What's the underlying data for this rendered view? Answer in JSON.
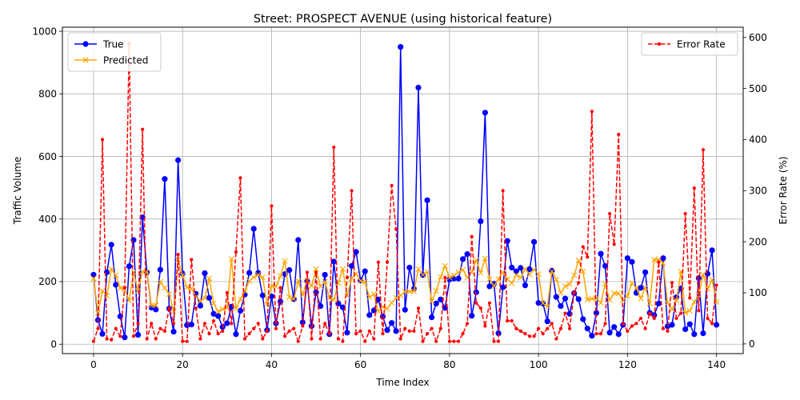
{
  "chart_data": {
    "type": "line",
    "title": "Street: PROSPECT AVENUE (using historical feature)",
    "xlabel": "Time Index",
    "ylabel": "Traffic Volume",
    "y2label": "Error Rate (%)",
    "xlim": [
      -7,
      146
    ],
    "ylim": [
      -30,
      1013
    ],
    "y2lim": [
      -19,
      620
    ],
    "xticks": [
      0,
      20,
      40,
      60,
      80,
      100,
      120,
      140
    ],
    "yticks": [
      0,
      200,
      400,
      600,
      800,
      1000
    ],
    "y2ticks": [
      0,
      100,
      200,
      300,
      400,
      500,
      600
    ],
    "grid": true,
    "legend_left": "upper left",
    "legend_right": "upper right",
    "series": [
      {
        "name": "True",
        "axis": "left",
        "color": "#0000ff",
        "marker": "circle",
        "linestyle": "solid",
        "values": [
          222,
          77,
          33,
          230,
          318,
          190,
          89,
          22,
          249,
          333,
          30,
          405,
          229,
          117,
          111,
          238,
          528,
          114,
          40,
          588,
          226,
          61,
          63,
          161,
          123,
          227,
          148,
          97,
          90,
          55,
          67,
          120,
          32,
          107,
          159,
          228,
          369,
          228,
          156,
          45,
          153,
          67,
          136,
          224,
          237,
          144,
          333,
          70,
          201,
          58,
          166,
          122,
          222,
          32,
          264,
          130,
          118,
          37,
          250,
          295,
          204,
          233,
          93,
          108,
          143,
          88,
          45,
          68,
          42,
          950,
          110,
          245,
          177,
          820,
          221,
          460,
          86,
          130,
          143,
          116,
          207,
          210,
          210,
          272,
          288,
          91,
          166,
          393,
          740,
          185,
          193,
          35,
          182,
          330,
          245,
          233,
          244,
          188,
          240,
          327,
          132,
          130,
          73,
          235,
          151,
          122,
          146,
          97,
          163,
          144,
          80,
          50,
          27,
          100,
          289,
          250,
          37,
          55,
          32,
          62,
          275,
          263,
          164,
          180,
          230,
          100,
          93,
          130,
          275,
          57,
          62,
          150,
          178,
          48,
          64,
          32,
          211,
          35,
          225,
          300,
          62
        ]
      },
      {
        "name": "Predicted",
        "axis": "left",
        "color": "#ffa500",
        "marker": "x",
        "linestyle": "solid",
        "values": [
          210,
          100,
          170,
          155,
          240,
          220,
          180,
          175,
          140,
          230,
          170,
          232,
          232,
          124,
          124,
          200,
          180,
          160,
          105,
          270,
          220,
          181,
          178,
          152,
          138,
          148,
          210,
          130,
          104,
          112,
          116,
          272,
          114,
          143,
          170,
          202,
          214,
          222,
          214,
          127,
          186,
          185,
          218,
          266,
          150,
          144,
          202,
          158,
          204,
          186,
          240,
          185,
          200,
          148,
          142,
          196,
          240,
          155,
          210,
          225,
          202,
          199,
          150,
          160,
          105,
          119,
          114,
          132,
          148,
          156,
          168,
          168,
          169,
          240,
          222,
          231,
          137,
          170,
          215,
          250,
          213,
          220,
          230,
          238,
          213,
          230,
          269,
          228,
          274,
          208,
          186,
          208,
          230,
          208,
          195,
          221,
          213,
          240,
          223,
          238,
          224,
          131,
          120,
          233,
          207,
          164,
          185,
          192,
          220,
          268,
          232,
          142,
          145,
          147,
          132,
          193,
          141,
          163,
          162,
          140,
          154,
          195,
          180,
          146,
          181,
          130,
          270,
          271,
          260,
          132,
          111,
          140,
          232,
          100,
          107,
          135,
          158,
          223,
          177,
          206,
          135
        ]
      },
      {
        "name": "Error Rate",
        "axis": "right",
        "color": "#ff0000",
        "marker": "point",
        "linestyle": "dashed",
        "values": [
          5,
          30,
          400,
          10,
          8,
          30,
          15,
          110,
          588,
          15,
          40,
          420,
          10,
          40,
          10,
          30,
          25,
          70,
          40,
          175,
          5,
          5,
          165,
          70,
          10,
          40,
          20,
          45,
          20,
          25,
          100,
          40,
          180,
          325,
          10,
          20,
          30,
          40,
          10,
          25,
          270,
          30,
          110,
          15,
          25,
          30,
          5,
          35,
          140,
          10,
          140,
          10,
          40,
          20,
          385,
          10,
          5,
          130,
          300,
          20,
          25,
          5,
          25,
          10,
          160,
          20,
          160,
          310,
          225,
          10,
          30,
          25,
          25,
          70,
          5,
          20,
          30,
          5,
          30,
          130,
          5,
          5,
          5,
          20,
          40,
          210,
          80,
          70,
          35,
          80,
          5,
          5,
          300,
          45,
          45,
          30,
          25,
          20,
          15,
          15,
          30,
          20,
          30,
          40,
          10,
          30,
          60,
          30,
          100,
          120,
          190,
          170,
          455,
          20,
          20,
          40,
          255,
          195,
          410,
          40,
          25,
          35,
          40,
          50,
          30,
          60,
          50,
          160,
          30,
          25,
          120,
          50,
          60,
          255,
          90,
          305,
          65,
          380,
          50,
          40,
          115
        ]
      }
    ]
  }
}
